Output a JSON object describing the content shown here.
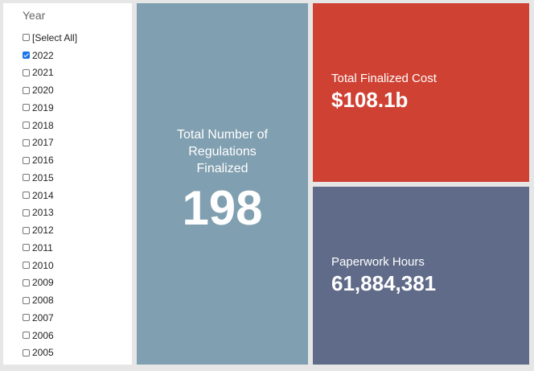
{
  "filter": {
    "title": "Year",
    "options": [
      {
        "label": "[Select All]",
        "checked": false
      },
      {
        "label": "2022",
        "checked": true
      },
      {
        "label": "2021",
        "checked": false
      },
      {
        "label": "2020",
        "checked": false
      },
      {
        "label": "2019",
        "checked": false
      },
      {
        "label": "2018",
        "checked": false
      },
      {
        "label": "2017",
        "checked": false
      },
      {
        "label": "2016",
        "checked": false
      },
      {
        "label": "2015",
        "checked": false
      },
      {
        "label": "2014",
        "checked": false
      },
      {
        "label": "2013",
        "checked": false
      },
      {
        "label": "2012",
        "checked": false
      },
      {
        "label": "2011",
        "checked": false
      },
      {
        "label": "2010",
        "checked": false
      },
      {
        "label": "2009",
        "checked": false
      },
      {
        "label": "2008",
        "checked": false
      },
      {
        "label": "2007",
        "checked": false
      },
      {
        "label": "2006",
        "checked": false
      },
      {
        "label": "2005",
        "checked": false
      }
    ]
  },
  "tiles": {
    "regulations": {
      "label": "Total Number of Regulations Finalized",
      "value": "198",
      "color": "#809fb0"
    },
    "cost": {
      "label": "Total Finalized Cost",
      "value": "$108.1b",
      "color": "#cf4233"
    },
    "hours": {
      "label": "Paperwork Hours",
      "value": "61,884,381",
      "color": "#5f6b89"
    }
  }
}
